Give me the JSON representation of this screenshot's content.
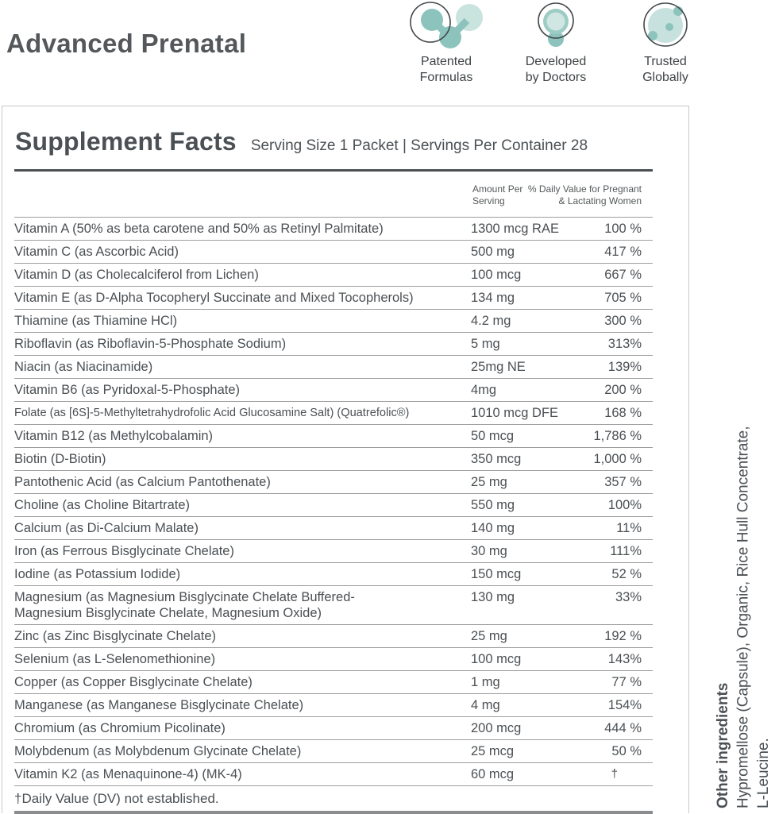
{
  "header": {
    "title": "Advanced Prenatal",
    "badges": [
      {
        "icon": "patented-formulas-icon",
        "line1": "Patented",
        "line2": "Formulas"
      },
      {
        "icon": "developed-by-doctors-icon",
        "line1": "Developed",
        "line2": "by Doctors"
      },
      {
        "icon": "trusted-globally-icon",
        "line1": "Trusted",
        "line2": "Globally"
      }
    ]
  },
  "panel": {
    "title": "Supplement Facts",
    "serving_info": "Serving Size 1 Packet | Servings Per Container 28",
    "columns": {
      "amount_l1": "Amount Per",
      "amount_l2": "Serving",
      "dv_l1": "% Daily Value for Pregnant",
      "dv_l2": "& Lactating Women"
    },
    "rows": [
      {
        "name": "Vitamin A (50% as beta carotene and 50% as Retinyl Palmitate)",
        "amount": "1300 mcg RAE",
        "dv": "100 %"
      },
      {
        "name": "Vitamin C (as Ascorbic Acid)",
        "amount": "500 mg",
        "dv": "417 %"
      },
      {
        "name": "Vitamin D (as Cholecalciferol from Lichen)",
        "amount": "100 mcg",
        "dv": "667 %"
      },
      {
        "name": "Vitamin E (as D-Alpha Tocopheryl Succinate and Mixed Tocopherols)",
        "amount": "134 mg",
        "dv": "705 %"
      },
      {
        "name": "Thiamine (as Thiamine HCl)",
        "amount": "4.2 mg",
        "dv": "300 %"
      },
      {
        "name": "Riboflavin (as Riboflavin-5-Phosphate Sodium)",
        "amount": "5 mg",
        "dv": "313%"
      },
      {
        "name": "Niacin (as Niacinamide)",
        "amount": "25mg NE",
        "dv": "139%"
      },
      {
        "name": "Vitamin B6 (as Pyridoxal-5-Phosphate)",
        "amount": "4mg",
        "dv": "200 %"
      },
      {
        "name": "Folate (as [6S]-5-Methyltetrahydrofolic Acid Glucosamine Salt) (Quatrefolic®)",
        "amount": "1010 mcg DFE",
        "dv": "168 %"
      },
      {
        "name": "Vitamin B12 (as Methylcobalamin)",
        "amount": "50 mcg",
        "dv": "1,786 %"
      },
      {
        "name": "Biotin (D-Biotin)",
        "amount": "350 mcg",
        "dv": "1,000 %"
      },
      {
        "name": "Pantothenic Acid (as Calcium Pantothenate)",
        "amount": "25 mg",
        "dv": "357 %"
      },
      {
        "name": "Choline (as Choline Bitartrate)",
        "amount": "550 mg",
        "dv": "100%"
      },
      {
        "name": "Calcium (as Di-Calcium Malate)",
        "amount": "140 mg",
        "dv": "11%"
      },
      {
        "name": "Iron (as Ferrous Bisglycinate Chelate)",
        "amount": "30 mg",
        "dv": "111%"
      },
      {
        "name": "Iodine (as Potassium Iodide)",
        "amount": "150 mcg",
        "dv": "52 %"
      },
      {
        "name": "Magnesium (as Magnesium Bisglycinate Chelate Buffered-\nMagnesium Bisglycinate Chelate, Magnesium Oxide)",
        "amount": "130 mg",
        "dv": "33%"
      },
      {
        "name": "Zinc (as Zinc Bisglycinate Chelate)",
        "amount": "25 mg",
        "dv": "192 %"
      },
      {
        "name": "Selenium (as L-Selenomethionine)",
        "amount": "100 mcg",
        "dv": "143%"
      },
      {
        "name": "Copper (as Copper Bisglycinate Chelate)",
        "amount": "1 mg",
        "dv": "77 %"
      },
      {
        "name": "Manganese (as Manganese Bisglycinate Chelate)",
        "amount": "4 mg",
        "dv": "154%"
      },
      {
        "name": "Chromium (as Chromium Picolinate)",
        "amount": "200 mcg",
        "dv": "444 %"
      },
      {
        "name": "Molybdenum (as Molybdenum Glycinate Chelate)",
        "amount": "25 mcg",
        "dv": "50 %"
      },
      {
        "name": "Vitamin K2 (as Menaquinone-4) (MK-4)",
        "amount": "60 mcg",
        "dv": "†"
      }
    ],
    "footnote": "†Daily Value (DV) not established."
  },
  "sidebar": {
    "heading": "Other ingredients",
    "line1": "Hypromellose (Capsule), Organic, Rice Hull Concentrate,",
    "line2": "L-Leucine."
  },
  "colors": {
    "text_dark": "#4b5054",
    "teal": "#8cc4bd",
    "teal_light": "#c7e2de",
    "teal_ring": "#9dccc5",
    "icon_outline": "#43484b",
    "card_border": "#c7c9ca",
    "row_line": "#9c9ea0",
    "bottom_bar": "#8a8c8e"
  }
}
